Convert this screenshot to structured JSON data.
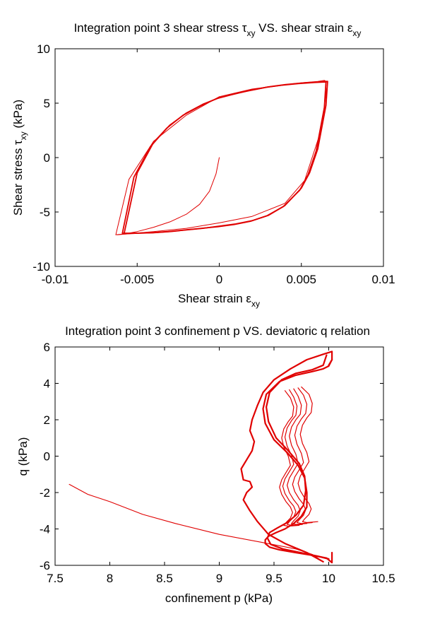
{
  "chart_data": [
    {
      "type": "line",
      "title": {
        "main": "Integration point 3 shear stress τ",
        "sub1": "xy",
        "mid": " VS. shear strain ε",
        "sub2": "xy"
      },
      "xlabel": {
        "main": "Shear strain ε",
        "sub": "xy"
      },
      "ylabel": {
        "main": "Shear stress τ",
        "sub": "xy",
        "tail": " (kPa)"
      },
      "xlim": [
        -0.01,
        0.01
      ],
      "ylim": [
        -10,
        10
      ],
      "xticks": [
        -0.01,
        -0.005,
        0,
        0.005,
        0.01
      ],
      "xtick_labels": [
        "-0.01",
        "-0.005",
        "0",
        "0.005",
        "0.01"
      ],
      "yticks": [
        -10,
        -5,
        0,
        5,
        10
      ],
      "ytick_labels": [
        "-10",
        "-5",
        "0",
        "5",
        "10"
      ],
      "grid": false,
      "color": "#e00000",
      "series": [
        {
          "x": [
            0,
            -0.0002,
            -0.0006,
            -0.0012,
            -0.002,
            -0.003,
            -0.004,
            -0.005,
            -0.0057,
            -0.0063,
            -0.0055,
            -0.004,
            -0.002,
            0,
            0.002,
            0.004,
            0.0052,
            0.006,
            0.0064,
            0.0066,
            0.0062,
            0.0052,
            0.004,
            0.002,
            0,
            -0.002,
            -0.004,
            -0.0055,
            -0.0062
          ],
          "y": [
            0,
            -1.5,
            -3.1,
            -4.3,
            -5.2,
            -5.9,
            -6.4,
            -6.8,
            -7.0,
            -7.1,
            -2.0,
            1.5,
            3.9,
            5.6,
            6.3,
            6.7,
            6.9,
            7.0,
            7.1,
            6.9,
            2.5,
            -2.1,
            -4.2,
            -5.4,
            -6.0,
            -6.5,
            -6.8,
            -7.0,
            -7.1
          ]
        },
        {
          "x": [
            -0.0058,
            -0.005,
            -0.004,
            -0.003,
            -0.002,
            -0.001,
            0,
            0.001,
            0.002,
            0.003,
            0.004,
            0.005,
            0.006,
            0.0066,
            0.0065,
            0.006,
            0.0055,
            0.005,
            0.004,
            0.003,
            0.002,
            0.001,
            0,
            -0.001,
            -0.002,
            -0.003,
            -0.004,
            -0.005,
            -0.0058
          ],
          "y": [
            -7.0,
            -1.4,
            1.4,
            3.0,
            4.1,
            4.9,
            5.5,
            5.9,
            6.2,
            6.5,
            6.7,
            6.85,
            6.95,
            7.0,
            4.8,
            0.8,
            -1.4,
            -2.8,
            -4.4,
            -5.3,
            -5.8,
            -6.1,
            -6.3,
            -6.5,
            -6.65,
            -6.8,
            -6.9,
            -6.95,
            -7.0
          ]
        },
        {
          "x": [
            -0.0059,
            -0.0052,
            -0.0042,
            -0.0032,
            -0.0022,
            -0.0012,
            -0.0002,
            0.0008,
            0.0018,
            0.0028,
            0.0038,
            0.0048,
            0.0058,
            0.0065,
            0.0064,
            0.0059,
            0.0054,
            0.0049,
            0.0039,
            0.0029,
            0.0019,
            0.0009,
            -0.0001,
            -0.0011,
            -0.0021,
            -0.0031,
            -0.0041,
            -0.0051,
            -0.0059
          ],
          "y": [
            -6.95,
            -1.8,
            1.0,
            2.7,
            3.9,
            4.7,
            5.4,
            5.8,
            6.15,
            6.45,
            6.65,
            6.8,
            6.9,
            6.95,
            4.6,
            0.6,
            -1.6,
            -3.0,
            -4.5,
            -5.35,
            -5.85,
            -6.15,
            -6.35,
            -6.5,
            -6.65,
            -6.8,
            -6.9,
            -6.95,
            -6.95
          ]
        }
      ]
    },
    {
      "type": "line",
      "title": "Integration point 3 confinement p VS. deviatoric q relation",
      "xlabel": "confinement p (kPa)",
      "ylabel": "q (kPa)",
      "xlim": [
        7.5,
        10.5
      ],
      "ylim": [
        -6,
        6
      ],
      "xticks": [
        7.5,
        8,
        8.5,
        9,
        9.5,
        10,
        10.5
      ],
      "xtick_labels": [
        "7.5",
        "8",
        "8.5",
        "9",
        "9.5",
        "10",
        "10.5"
      ],
      "yticks": [
        -6,
        -4,
        -2,
        0,
        2,
        4,
        6
      ],
      "ytick_labels": [
        "-6",
        "-4",
        "-2",
        "0",
        "2",
        "4",
        "6"
      ],
      "grid": false,
      "color": "#e00000",
      "series": [
        {
          "x": [
            7.63,
            7.8,
            8.0,
            8.3,
            8.6,
            9.0,
            9.4,
            9.7,
            9.85,
            9.95
          ],
          "y": [
            -1.55,
            -2.1,
            -2.5,
            -3.2,
            -3.7,
            -4.3,
            -4.75,
            -5.1,
            -5.4,
            -5.8
          ]
        },
        {
          "x": [
            9.95,
            9.8,
            9.6,
            9.45,
            9.35,
            9.28,
            9.22,
            9.25,
            9.3,
            9.28,
            9.22,
            9.2,
            9.25,
            9.3,
            9.32,
            9.28,
            9.3,
            9.35,
            9.4,
            9.5,
            9.65,
            9.8,
            9.95,
            10.03,
            10.03,
            10.0
          ],
          "y": [
            -5.8,
            -5.3,
            -4.8,
            -4.3,
            -3.6,
            -3.0,
            -2.4,
            -2.0,
            -1.7,
            -1.4,
            -1.3,
            -0.7,
            -0.2,
            0.3,
            0.8,
            1.4,
            2.0,
            2.8,
            3.5,
            4.2,
            4.8,
            5.3,
            5.6,
            5.75,
            5.3,
            5.0
          ]
        },
        {
          "x": [
            10.03,
            10.0,
            9.95,
            9.85,
            9.7,
            9.55,
            9.43,
            9.4,
            9.42,
            9.5,
            9.62,
            9.72,
            9.78,
            9.8,
            9.8,
            9.75,
            9.68,
            9.6,
            9.52,
            9.45,
            9.42,
            9.42,
            9.46,
            9.55,
            9.7,
            9.85,
            9.98,
            10.03,
            10.03
          ],
          "y": [
            5.3,
            4.95,
            4.8,
            4.65,
            4.45,
            4.1,
            3.4,
            2.6,
            1.8,
            0.9,
            0.2,
            -0.5,
            -1.2,
            -2.0,
            -2.8,
            -3.3,
            -3.7,
            -4.0,
            -4.2,
            -4.4,
            -4.6,
            -4.8,
            -5.0,
            -5.15,
            -5.3,
            -5.45,
            -5.6,
            -5.85,
            -5.3
          ]
        },
        {
          "x": [
            9.98,
            9.95,
            9.85,
            9.7,
            9.57,
            9.46,
            9.43,
            9.45,
            9.52,
            9.63,
            9.73,
            9.78,
            9.79,
            9.77,
            9.7,
            9.62,
            9.53,
            9.46,
            9.44,
            9.47,
            9.58,
            9.74,
            9.9,
            10.0
          ],
          "y": [
            5.55,
            5.0,
            4.75,
            4.55,
            4.2,
            3.5,
            2.7,
            1.9,
            1.0,
            0.3,
            -0.4,
            -1.1,
            -1.9,
            -2.7,
            -3.25,
            -3.65,
            -3.95,
            -4.2,
            -4.5,
            -4.85,
            -5.1,
            -5.3,
            -5.5,
            -5.65
          ]
        },
        {
          "x": [
            9.68,
            9.72,
            9.75,
            9.74,
            9.7,
            9.66,
            9.64,
            9.66,
            9.7,
            9.72,
            9.68,
            9.64,
            9.62,
            9.64,
            9.68,
            9.72,
            9.74,
            9.72,
            9.68,
            9.66,
            9.7,
            9.8
          ],
          "y": [
            3.7,
            3.3,
            2.8,
            2.3,
            2.0,
            1.6,
            1.1,
            0.6,
            0.1,
            -0.4,
            -0.8,
            -1.2,
            -1.6,
            -2.0,
            -2.4,
            -2.7,
            -3.0,
            -3.3,
            -3.55,
            -3.7,
            -3.75,
            -3.7
          ]
        },
        {
          "x": [
            9.72,
            9.77,
            9.8,
            9.79,
            9.75,
            9.71,
            9.69,
            9.71,
            9.75,
            9.77,
            9.73,
            9.69,
            9.67,
            9.69,
            9.73,
            9.77,
            9.79,
            9.77,
            9.73,
            9.71,
            9.75,
            9.85
          ],
          "y": [
            3.75,
            3.35,
            2.85,
            2.35,
            2.05,
            1.65,
            1.15,
            0.65,
            0.15,
            -0.35,
            -0.75,
            -1.15,
            -1.55,
            -1.95,
            -2.35,
            -2.65,
            -2.95,
            -3.25,
            -3.5,
            -3.65,
            -3.7,
            -3.65
          ]
        },
        {
          "x": [
            9.64,
            9.68,
            9.71,
            9.7,
            9.66,
            9.62,
            9.6,
            9.62,
            9.66,
            9.68,
            9.64,
            9.6,
            9.58,
            9.6,
            9.64,
            9.68,
            9.7,
            9.68,
            9.64,
            9.62,
            9.66,
            9.76
          ],
          "y": [
            3.65,
            3.25,
            2.75,
            2.25,
            1.95,
            1.55,
            1.05,
            0.55,
            0.05,
            -0.45,
            -0.85,
            -1.25,
            -1.65,
            -2.05,
            -2.45,
            -2.75,
            -3.05,
            -3.35,
            -3.6,
            -3.75,
            -3.8,
            -3.75
          ]
        },
        {
          "x": [
            9.75,
            9.82,
            9.85,
            9.84,
            9.8,
            9.76,
            9.74,
            9.76,
            9.8,
            9.82,
            9.78,
            9.74,
            9.72,
            9.74,
            9.78,
            9.82,
            9.84,
            9.82,
            9.78,
            9.76,
            9.8,
            9.9
          ],
          "y": [
            3.8,
            3.4,
            2.9,
            2.4,
            2.1,
            1.7,
            1.2,
            0.7,
            0.2,
            -0.3,
            -0.7,
            -1.1,
            -1.5,
            -1.9,
            -2.3,
            -2.6,
            -2.9,
            -3.2,
            -3.45,
            -3.6,
            -3.65,
            -3.6
          ]
        },
        {
          "x": [
            9.6,
            9.65,
            9.68,
            9.67,
            9.63,
            9.59,
            9.57,
            9.59,
            9.63,
            9.65,
            9.61,
            9.57,
            9.55,
            9.57,
            9.61,
            9.65,
            9.67,
            9.65,
            9.61,
            9.59,
            9.63,
            9.73
          ],
          "y": [
            3.6,
            3.2,
            2.7,
            2.2,
            1.9,
            1.5,
            1.0,
            0.5,
            0.0,
            -0.5,
            -0.9,
            -1.3,
            -1.7,
            -2.1,
            -2.5,
            -2.8,
            -3.1,
            -3.4,
            -3.65,
            -3.8,
            -3.85,
            -3.8
          ]
        }
      ]
    }
  ]
}
